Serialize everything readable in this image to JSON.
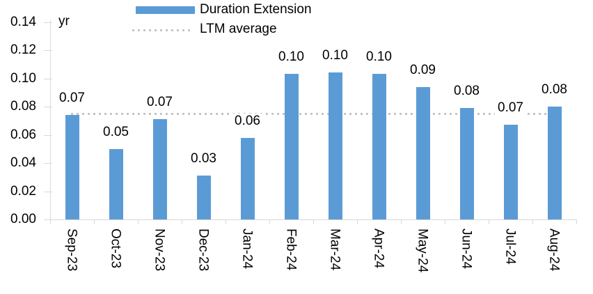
{
  "chart_data": {
    "type": "bar",
    "title": "",
    "unit_label": "yr",
    "categories": [
      "Sep-23",
      "Oct-23",
      "Nov-23",
      "Dec-23",
      "Jan-24",
      "Feb-24",
      "Mar-24",
      "Apr-24",
      "May-24",
      "Jun-24",
      "Jul-24",
      "Aug-24"
    ],
    "series": [
      {
        "name": "Duration Extension",
        "type": "bar",
        "color": "#5B9BD5",
        "values": [
          0.074,
          0.05,
          0.071,
          0.031,
          0.058,
          0.103,
          0.104,
          0.103,
          0.094,
          0.079,
          0.067,
          0.08
        ],
        "data_labels": [
          "0.07",
          "0.05",
          "0.07",
          "0.03",
          "0.06",
          "0.10",
          "0.10",
          "0.10",
          "0.09",
          "0.08",
          "0.07",
          "0.08"
        ]
      },
      {
        "name": "LTM average",
        "type": "line",
        "line_style": "dotted",
        "color": "#BFBFBF",
        "value": 0.0746
      }
    ],
    "y_axis": {
      "min": 0,
      "max": 0.14,
      "tick_interval": 0.02,
      "tick_labels": [
        "0.00",
        "0.02",
        "0.04",
        "0.06",
        "0.08",
        "0.10",
        "0.12",
        "0.14"
      ]
    },
    "x_axis": {
      "label_rotation_deg": 90
    },
    "legend": {
      "position": "top-center"
    },
    "grid": false,
    "axis_color": "#D9D9D9",
    "text_color": "#000000",
    "background": "#FFFFFF"
  }
}
